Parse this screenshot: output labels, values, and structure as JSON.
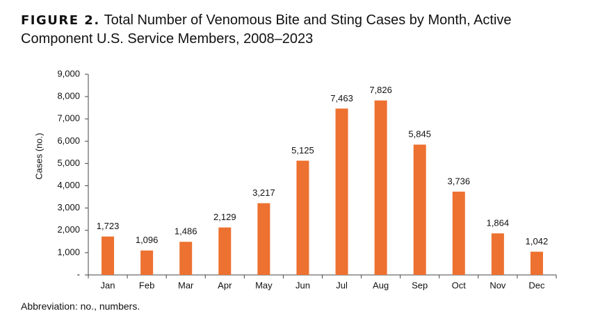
{
  "chart_data": {
    "type": "bar",
    "figure_label": "FIGURE 2.",
    "title": "Total Number of Venomous Bite and Sting Cases by Month, Active Component U.S. Service Members, 2008–2023",
    "y_label": "Cases (no.)",
    "footnote": "Abbreviation: no., numbers.",
    "categories": [
      "Jan",
      "Feb",
      "Mar",
      "Apr",
      "May",
      "Jun",
      "Jul",
      "Aug",
      "Sep",
      "Oct",
      "Nov",
      "Dec"
    ],
    "values": [
      1723,
      1096,
      1486,
      2129,
      3217,
      5125,
      7463,
      7826,
      5845,
      3736,
      1864,
      1042
    ],
    "value_labels": [
      "1,723",
      "1,096",
      "1,486",
      "2,129",
      "3,217",
      "5,125",
      "7,463",
      "7,826",
      "5,845",
      "3,736",
      "1,864",
      "1,042"
    ],
    "color": "#ed7130",
    "ylim": [
      0,
      9000
    ],
    "yticks": [
      {
        "value": 0,
        "label": "-"
      },
      {
        "value": 1000,
        "label": "1,000"
      },
      {
        "value": 2000,
        "label": "2,000"
      },
      {
        "value": 3000,
        "label": "3,000"
      },
      {
        "value": 4000,
        "label": "4,000"
      },
      {
        "value": 5000,
        "label": "5,000"
      },
      {
        "value": 6000,
        "label": "6,000"
      },
      {
        "value": 7000,
        "label": "7,000"
      },
      {
        "value": 8000,
        "label": "8,000"
      },
      {
        "value": 9000,
        "label": "9,000"
      }
    ],
    "grid": false
  }
}
